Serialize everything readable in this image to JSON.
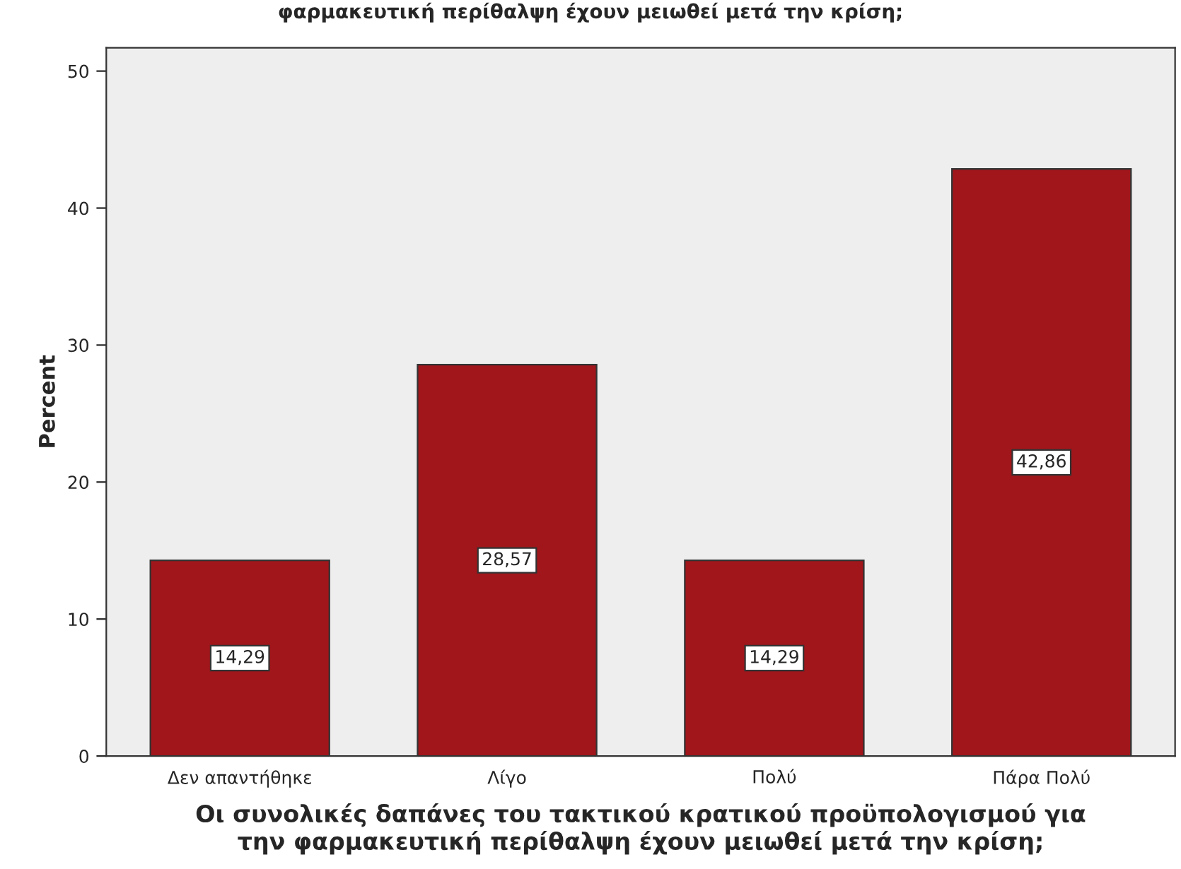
{
  "chart_data": {
    "type": "bar",
    "title": "φαρμακευτική περίθαλψη έχουν μειωθεί μετά την κρίση;",
    "xlabel": "Οι συνολικές δαπάνες του τακτικού κρατικού προϋπολογισμού για\nτην φαρμακευτική περίθαλψη έχουν μειωθεί μετά την κρίση;",
    "ylabel": "Percent",
    "categories": [
      "Δεν απαντήθηκε",
      "Λίγο",
      "Πολύ",
      "Πάρα Πολύ"
    ],
    "values": [
      14.29,
      28.57,
      14.29,
      42.86
    ],
    "value_labels": [
      "14,29",
      "28,57",
      "14,29",
      "42,86"
    ],
    "color": "#a0161b",
    "ylim": [
      0,
      51.7
    ],
    "yticks": [
      0,
      10,
      20,
      30,
      40,
      50
    ],
    "grid": false,
    "legend": false
  }
}
